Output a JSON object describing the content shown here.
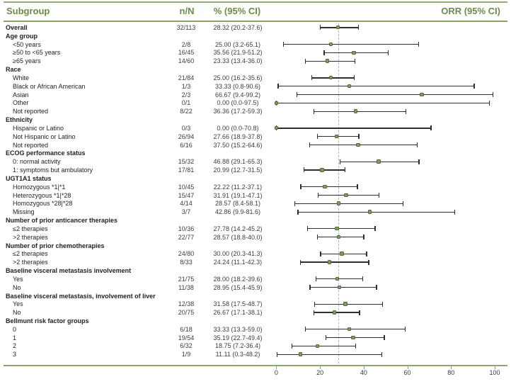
{
  "header": {
    "subgroup": "Subgroup",
    "n_over_N": "n/N",
    "pct_ci": "% (95% CI)",
    "orr_ci": "ORR (95% CI)"
  },
  "colors": {
    "accent_green": "#6d8b46",
    "rule_green": "#96ab78",
    "rule_green_dark": "#8ca06c",
    "axis_green": "#8ba56f",
    "marker_fill": "#7f9e5a",
    "marker_border": "#50683a",
    "ci_line": "#2e2e2e",
    "reference_dash": "#b3b3b3",
    "text": "#222222"
  },
  "chart_data": {
    "type": "forest",
    "title": "",
    "xlabel": "",
    "axis": {
      "min": 0,
      "max": 100,
      "ticks": [
        0,
        20,
        40,
        60,
        80,
        100
      ]
    },
    "reference_line": 28.32,
    "legend": "dashed vertical line = overall ORR 28.32",
    "rows": [
      {
        "type": "data",
        "bold": true,
        "indent": false,
        "label": "Overall",
        "nN": "32/113",
        "pct": "28.32 (20.2-37.6)",
        "est": 28.32,
        "lo": 20.2,
        "hi": 37.6
      },
      {
        "type": "group",
        "label": "Age group"
      },
      {
        "type": "data",
        "label": "<50 years",
        "nN": "2/8",
        "pct": "25.00 (3.2-65.1)",
        "est": 25.0,
        "lo": 3.2,
        "hi": 65.1
      },
      {
        "type": "data",
        "label": "≥50 to <65 years",
        "nN": "16/45",
        "pct": "35.56 (21.9-51.2)",
        "est": 35.56,
        "lo": 21.9,
        "hi": 51.2
      },
      {
        "type": "data",
        "label": "≥65 years",
        "nN": "14/60",
        "pct": "23.33 (13.4-36.0)",
        "est": 23.33,
        "lo": 13.4,
        "hi": 36.0
      },
      {
        "type": "group",
        "label": "Race"
      },
      {
        "type": "data",
        "label": "White",
        "nN": "21/84",
        "pct": "25.00 (16.2-35.6)",
        "est": 25.0,
        "lo": 16.2,
        "hi": 35.6
      },
      {
        "type": "data",
        "label": "Black or African American",
        "nN": "1/3",
        "pct": "33.33 (0.8-90.6)",
        "est": 33.33,
        "lo": 0.8,
        "hi": 90.6
      },
      {
        "type": "data",
        "label": "Asian",
        "nN": "2/3",
        "pct": "66.67 (9.4-99.2)",
        "est": 66.67,
        "lo": 9.4,
        "hi": 99.2
      },
      {
        "type": "data",
        "label": "Other",
        "nN": "0/1",
        "pct": "0.00 (0.0-97.5)",
        "est": 0.0,
        "lo": 0.0,
        "hi": 97.5
      },
      {
        "type": "data",
        "label": "Not reported",
        "nN": "8/22",
        "pct": "36.36 (17.2-59.3)",
        "est": 36.36,
        "lo": 17.2,
        "hi": 59.3
      },
      {
        "type": "group",
        "label": "Ethnicity"
      },
      {
        "type": "data",
        "label": "Hispanic or Latino",
        "nN": "0/3",
        "pct": "0.00 (0.0-70.8)",
        "est": 0.0,
        "lo": 0.0,
        "hi": 70.8
      },
      {
        "type": "data",
        "label": "Not Hispanic or Latino",
        "nN": "26/94",
        "pct": "27.66 (18.9-37.8)",
        "est": 27.66,
        "lo": 18.9,
        "hi": 37.8
      },
      {
        "type": "data",
        "label": "Not reported",
        "nN": "6/16",
        "pct": "37.50 (15.2-64.6)",
        "est": 37.5,
        "lo": 15.2,
        "hi": 64.6
      },
      {
        "type": "group",
        "label": "ECOG performance status"
      },
      {
        "type": "data",
        "label": "0: normal activity",
        "nN": "15/32",
        "pct": "46.88 (29.1-65.3)",
        "est": 46.88,
        "lo": 29.1,
        "hi": 65.3
      },
      {
        "type": "data",
        "label": "1: symptoms but ambulatory",
        "nN": "17/81",
        "pct": "20.99 (12.7-31.5)",
        "est": 20.99,
        "lo": 12.7,
        "hi": 31.5
      },
      {
        "type": "group",
        "label": "UGT1A1 status"
      },
      {
        "type": "data",
        "label": "Homozygous *1|*1",
        "nN": "10/45",
        "pct": "22.22 (11.2-37.1)",
        "est": 22.22,
        "lo": 11.2,
        "hi": 37.1
      },
      {
        "type": "data",
        "label": "Heterozygous *1|*28",
        "nN": "15/47",
        "pct": "31.91 (19.1-47.1)",
        "est": 31.91,
        "lo": 19.1,
        "hi": 47.1
      },
      {
        "type": "data",
        "label": "Homozygous *28|*28",
        "nN": "4/14",
        "pct": "28.57 (8.4-58.1)",
        "est": 28.57,
        "lo": 8.4,
        "hi": 58.1
      },
      {
        "type": "data",
        "label": "Missing",
        "nN": "3/7",
        "pct": "42.86 (9.9-81.6)",
        "est": 42.86,
        "lo": 9.9,
        "hi": 81.6
      },
      {
        "type": "group",
        "label": "Number of prior anticancer therapies"
      },
      {
        "type": "data",
        "label": "≤2 therapies",
        "nN": "10/36",
        "pct": "27.78 (14.2-45.2)",
        "est": 27.78,
        "lo": 14.2,
        "hi": 45.2
      },
      {
        "type": "data",
        "label": ">2 therapies",
        "nN": "22/77",
        "pct": "28.57 (18.8-40.0)",
        "est": 28.57,
        "lo": 18.8,
        "hi": 40.0
      },
      {
        "type": "group",
        "label": "Number of prior chemotherapies"
      },
      {
        "type": "data",
        "label": "≤2 therapies",
        "nN": "24/80",
        "pct": "30.00 (20.3-41.3)",
        "est": 30.0,
        "lo": 20.3,
        "hi": 41.3
      },
      {
        "type": "data",
        "label": ">2 therapies",
        "nN": "8/33",
        "pct": "24.24 (11.1-42.3)",
        "est": 24.24,
        "lo": 11.1,
        "hi": 42.3
      },
      {
        "type": "group",
        "label": "Baseline visceral metastasis involvement"
      },
      {
        "type": "data",
        "label": "Yes",
        "nN": "21/75",
        "pct": "28.00 (18.2-39.6)",
        "est": 28.0,
        "lo": 18.2,
        "hi": 39.6
      },
      {
        "type": "data",
        "label": "No",
        "nN": "11/38",
        "pct": "28.95 (15.4-45.9)",
        "est": 28.95,
        "lo": 15.4,
        "hi": 45.9
      },
      {
        "type": "group",
        "label": "Baseline visceral metastasis, involvement of liver"
      },
      {
        "type": "data",
        "label": "Yes",
        "nN": "12/38",
        "pct": "31.58 (17.5-48.7)",
        "est": 31.58,
        "lo": 17.5,
        "hi": 48.7
      },
      {
        "type": "data",
        "label": "No",
        "nN": "20/75",
        "pct": "26.67 (17.1-38.1)",
        "est": 26.67,
        "lo": 17.1,
        "hi": 38.1
      },
      {
        "type": "group",
        "label": "Bellmunt risk factor groups"
      },
      {
        "type": "data",
        "label": "0",
        "nN": "6/18",
        "pct": "33.33 (13.3-59.0)",
        "est": 33.33,
        "lo": 13.3,
        "hi": 59.0
      },
      {
        "type": "data",
        "label": "1",
        "nN": "19/54",
        "pct": "35.19 (22.7-49.4)",
        "est": 35.19,
        "lo": 22.7,
        "hi": 49.4
      },
      {
        "type": "data",
        "label": "2",
        "nN": "6/32",
        "pct": "18.75 (7.2-36.4)",
        "est": 18.75,
        "lo": 7.2,
        "hi": 36.4
      },
      {
        "type": "data",
        "label": "3",
        "nN": "1/9",
        "pct": "11.11 (0.3-48.2)",
        "est": 11.11,
        "lo": 0.3,
        "hi": 48.2
      }
    ]
  }
}
